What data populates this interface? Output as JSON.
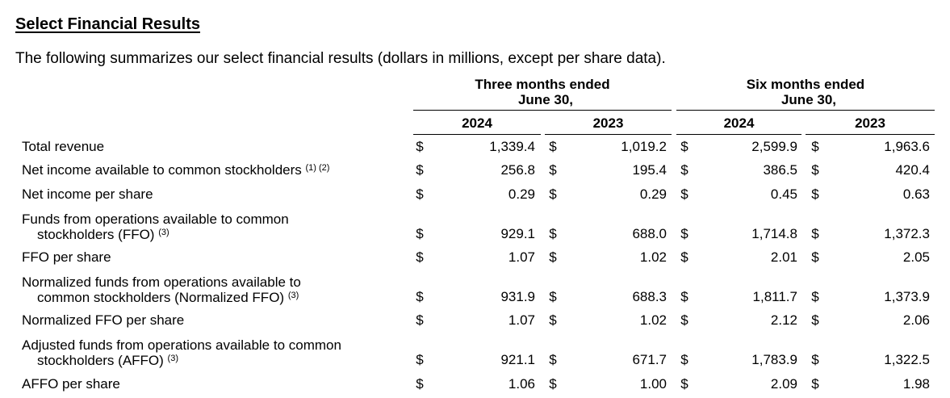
{
  "title": "Select Financial Results",
  "intro": "The following summarizes our select financial results (dollars in millions, except per share data).",
  "periods": [
    {
      "line1": "Three months ended",
      "line2": "June 30,",
      "years": [
        "2024",
        "2023"
      ]
    },
    {
      "line1": "Six months ended",
      "line2": "June 30,",
      "years": [
        "2024",
        "2023"
      ]
    }
  ],
  "currency_symbol": "$",
  "rows": [
    {
      "label_line1": "Total revenue",
      "label_line2": "",
      "footnote": "",
      "values": [
        "1,339.4",
        "1,019.2",
        "2,599.9",
        "1,963.6"
      ]
    },
    {
      "label_line1": "Net income available to common stockholders",
      "label_line2": "",
      "footnote": "(1) (2)",
      "values": [
        "256.8",
        "195.4",
        "386.5",
        "420.4"
      ]
    },
    {
      "label_line1": "Net income per share",
      "label_line2": "",
      "footnote": "",
      "values": [
        "0.29",
        "0.29",
        "0.45",
        "0.63"
      ]
    },
    {
      "label_line1": "Funds from operations available to common",
      "label_line2": "stockholders (FFO)",
      "footnote": "(3)",
      "values": [
        "929.1",
        "688.0",
        "1,714.8",
        "1,372.3"
      ]
    },
    {
      "label_line1": "FFO per share",
      "label_line2": "",
      "footnote": "",
      "values": [
        "1.07",
        "1.02",
        "2.01",
        "2.05"
      ]
    },
    {
      "label_line1": "Normalized funds from operations available to",
      "label_line2": "common stockholders (Normalized FFO)",
      "footnote": "(3)",
      "values": [
        "931.9",
        "688.3",
        "1,811.7",
        "1,373.9"
      ]
    },
    {
      "label_line1": "Normalized FFO per share",
      "label_line2": "",
      "footnote": "",
      "values": [
        "1.07",
        "1.02",
        "2.12",
        "2.06"
      ]
    },
    {
      "label_line1": "Adjusted funds from operations available to common",
      "label_line2": "stockholders (AFFO)",
      "footnote": "(3)",
      "values": [
        "921.1",
        "671.7",
        "1,783.9",
        "1,322.5"
      ]
    },
    {
      "label_line1": "AFFO per share",
      "label_line2": "",
      "footnote": "",
      "values": [
        "1.06",
        "1.00",
        "2.09",
        "1.98"
      ]
    }
  ]
}
